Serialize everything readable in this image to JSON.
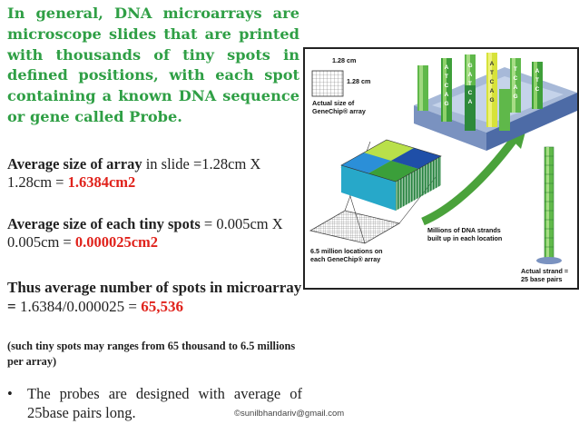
{
  "intro": "In general, DNA microarrays are microscope slides that are printed with thousands of tiny spots in defined positions, with each spot containing a known DNA sequence or gene called Probe.",
  "array_size": {
    "label": "Average size of array",
    "middle": " in slide =1.28cm X 1.28cm = ",
    "result": "1.6384cm2"
  },
  "spot_size": {
    "label": "Average size of each tiny spots",
    "middle": " = 0.005cm X 0.005cm = ",
    "result": "0.000025cm2"
  },
  "spot_count": {
    "label": "Thus average number of spots in microarray =",
    "middle": " 1.6384/0.000025 = ",
    "result": "65,536"
  },
  "note": "(such tiny spots may ranges from 65 thousand to 6.5 millions per array)",
  "bullet": {
    "symbol": "•",
    "text": "The probes are designed with average of 25base pairs long."
  },
  "copyright": "©sunilbhandariv@gmail.com",
  "figure": {
    "dim_top": "1.28 cm",
    "dim_side": "1.28 cm",
    "actual_size_line1": "Actual size of",
    "actual_size_line2": "GeneChip® array",
    "locations_line1": "6.5 million locations on",
    "locations_line2": "each GeneChip® array",
    "strands_line1": "Millions of DNA strands",
    "strands_line2": "built up in each location",
    "strand_line1": "Actual strand =",
    "strand_line2": "25 base pairs",
    "bases": [
      "A",
      "T",
      "C",
      "G"
    ]
  },
  "colors": {
    "green_heading": "#2f9f45",
    "red_value": "#e0231c"
  }
}
